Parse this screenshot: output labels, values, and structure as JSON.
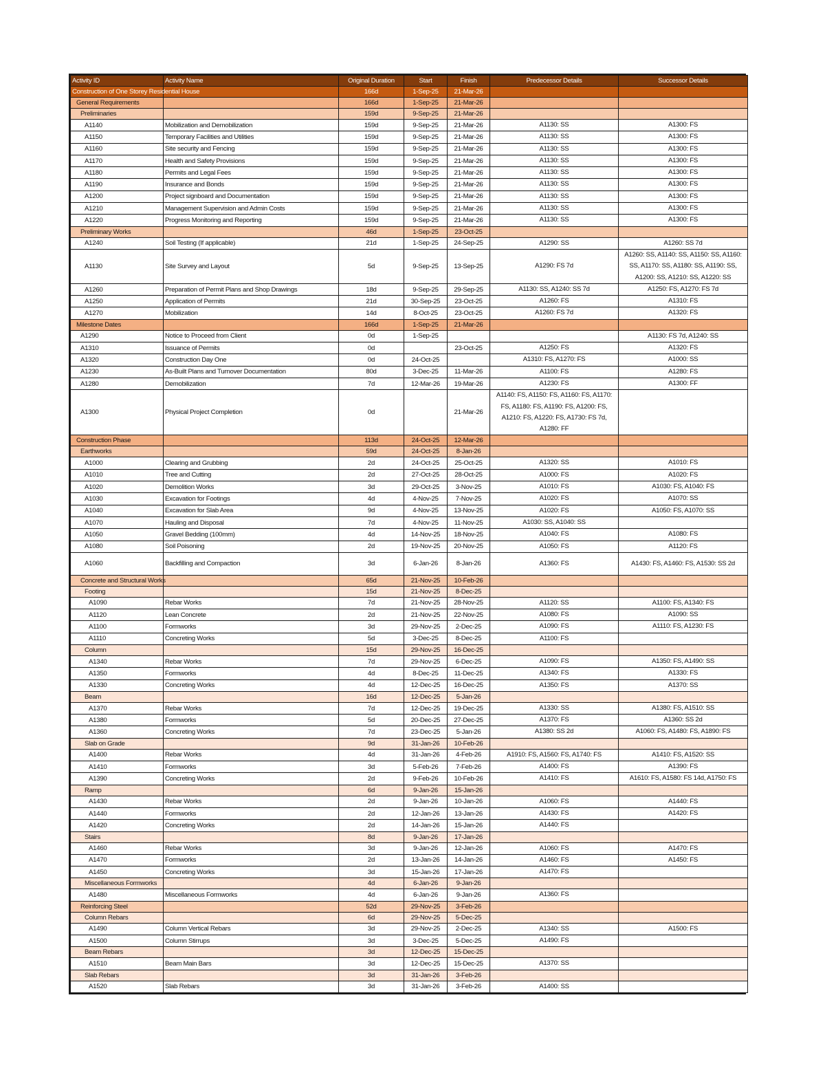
{
  "colors": {
    "header": "#843c0c",
    "level0": "#c55a11",
    "level1": "#f4b084",
    "level2": "#f8cbad",
    "level3": "#fce4d6"
  },
  "columns": [
    "Activity ID",
    "Activity Name",
    "Original Duration",
    "Start",
    "Finish",
    "Predecessor Details",
    "Successor Details"
  ],
  "rows": [
    {
      "type": "wbs",
      "level": 0,
      "label": "Construction of One Storey Residential House",
      "dur": "166d",
      "start": "1-Sep-25",
      "finish": "21-Mar-26"
    },
    {
      "type": "wbs",
      "level": 1,
      "label": "General Requirements",
      "dur": "166d",
      "start": "1-Sep-25",
      "finish": "21-Mar-26"
    },
    {
      "type": "wbs",
      "level": 2,
      "label": "Preliminaries",
      "dur": "159d",
      "start": "9-Sep-25",
      "finish": "21-Mar-26"
    },
    {
      "type": "act",
      "level": 3,
      "id": "A1140",
      "name": "Mobilization and Demobilization",
      "dur": "159d",
      "start": "9-Sep-25",
      "finish": "21-Mar-26",
      "pred": "A1130: SS",
      "succ": "A1300: FS"
    },
    {
      "type": "act",
      "level": 3,
      "id": "A1150",
      "name": "Temporary Facilities and Utilities",
      "dur": "159d",
      "start": "9-Sep-25",
      "finish": "21-Mar-26",
      "pred": "A1130: SS",
      "succ": "A1300: FS"
    },
    {
      "type": "act",
      "level": 3,
      "id": "A1160",
      "name": "Site security and Fencing",
      "dur": "159d",
      "start": "9-Sep-25",
      "finish": "21-Mar-26",
      "pred": "A1130: SS",
      "succ": "A1300: FS"
    },
    {
      "type": "act",
      "level": 3,
      "id": "A1170",
      "name": "Health and Safety Provisions",
      "dur": "159d",
      "start": "9-Sep-25",
      "finish": "21-Mar-26",
      "pred": "A1130: SS",
      "succ": "A1300: FS"
    },
    {
      "type": "act",
      "level": 3,
      "id": "A1180",
      "name": "Permits and Legal Fees",
      "dur": "159d",
      "start": "9-Sep-25",
      "finish": "21-Mar-26",
      "pred": "A1130: SS",
      "succ": "A1300: FS"
    },
    {
      "type": "act",
      "level": 3,
      "id": "A1190",
      "name": "Insurance and Bonds",
      "dur": "159d",
      "start": "9-Sep-25",
      "finish": "21-Mar-26",
      "pred": "A1130: SS",
      "succ": "A1300: FS"
    },
    {
      "type": "act",
      "level": 3,
      "id": "A1200",
      "name": "Project signboard and Documentation",
      "dur": "159d",
      "start": "9-Sep-25",
      "finish": "21-Mar-26",
      "pred": "A1130: SS",
      "succ": "A1300: FS"
    },
    {
      "type": "act",
      "level": 3,
      "id": "A1210",
      "name": "Management Supervision and Admin Costs",
      "dur": "159d",
      "start": "9-Sep-25",
      "finish": "21-Mar-26",
      "pred": "A1130: SS",
      "succ": "A1300: FS"
    },
    {
      "type": "act",
      "level": 3,
      "id": "A1220",
      "name": "Progress Monitoring and Reporting",
      "dur": "159d",
      "start": "9-Sep-25",
      "finish": "21-Mar-26",
      "pred": "A1130: SS",
      "succ": "A1300: FS"
    },
    {
      "type": "wbs",
      "level": 2,
      "label": "Preliminary Works",
      "dur": "46d",
      "start": "1-Sep-25",
      "finish": "23-Oct-25"
    },
    {
      "type": "act",
      "level": 3,
      "id": "A1240",
      "name": "Soil Testing (If applicable)",
      "dur": "21d",
      "start": "1-Sep-25",
      "finish": "24-Sep-25",
      "pred": "A1290: SS",
      "succ": "A1260: SS 7d"
    },
    {
      "type": "act",
      "level": 3,
      "id": "A1130",
      "name": "Site Survey and Layout",
      "dur": "5d",
      "start": "9-Sep-25",
      "finish": "13-Sep-25",
      "pred": "A1290: FS 7d",
      "succ": "A1260: SS, A1140: SS, A1150: SS, A1160: SS, A1170: SS, A1180: SS, A1190: SS, A1200: SS, A1210: SS, A1220: SS"
    },
    {
      "type": "act",
      "level": 3,
      "id": "A1260",
      "name": "Preparation of Permit Plans and Shop Drawings",
      "dur": "18d",
      "start": "9-Sep-25",
      "finish": "29-Sep-25",
      "pred": "A1130: SS, A1240: SS 7d",
      "succ": "A1250: FS, A1270: FS 7d"
    },
    {
      "type": "act",
      "level": 3,
      "id": "A1250",
      "name": "Application of Permits",
      "dur": "21d",
      "start": "30-Sep-25",
      "finish": "23-Oct-25",
      "pred": "A1260: FS",
      "succ": "A1310: FS"
    },
    {
      "type": "act",
      "level": 3,
      "id": "A1270",
      "name": "Mobilization",
      "dur": "14d",
      "start": "8-Oct-25",
      "finish": "23-Oct-25",
      "pred": "A1260: FS 7d",
      "succ": "A1320: FS"
    },
    {
      "type": "wbs",
      "level": 1,
      "label": "Milestone Dates",
      "dur": "166d",
      "start": "1-Sep-25",
      "finish": "21-Mar-26"
    },
    {
      "type": "act",
      "level": 2,
      "id": "A1290",
      "name": "Notice to Proceed from Client",
      "dur": "0d",
      "start": "1-Sep-25",
      "finish": "",
      "pred": "",
      "succ": "A1130: FS 7d, A1240: SS"
    },
    {
      "type": "act",
      "level": 2,
      "id": "A1310",
      "name": "Issuance of Permits",
      "dur": "0d",
      "start": "",
      "finish": "23-Oct-25",
      "pred": "A1250: FS",
      "succ": "A1320: FS"
    },
    {
      "type": "act",
      "level": 2,
      "id": "A1320",
      "name": "Construction Day One",
      "dur": "0d",
      "start": "24-Oct-25",
      "finish": "",
      "pred": "A1310: FS, A1270: FS",
      "succ": "A1000: SS"
    },
    {
      "type": "act",
      "level": 2,
      "id": "A1230",
      "name": "As-Built Plans and Turnover Documentation",
      "dur": "80d",
      "start": "3-Dec-25",
      "finish": "11-Mar-26",
      "pred": "A1100: FS",
      "succ": "A1280: FS"
    },
    {
      "type": "act",
      "level": 2,
      "id": "A1280",
      "name": "Demobilization",
      "dur": "7d",
      "start": "12-Mar-26",
      "finish": "19-Mar-26",
      "pred": "A1230: FS",
      "succ": "A1300: FF"
    },
    {
      "type": "act",
      "level": 2,
      "id": "A1300",
      "name": "Physical Project Completion",
      "dur": "0d",
      "start": "",
      "finish": "21-Mar-26",
      "pred": "A1140: FS, A1150: FS, A1160: FS, A1170: FS, A1180: FS, A1190: FS, A1200: FS, A1210: FS, A1220: FS, A1730: FS 7d, A1280: FF",
      "succ": ""
    },
    {
      "type": "wbs",
      "level": 1,
      "label": "Construction Phase",
      "dur": "113d",
      "start": "24-Oct-25",
      "finish": "12-Mar-26"
    },
    {
      "type": "wbs",
      "level": 2,
      "label": "Earthworks",
      "dur": "59d",
      "start": "24-Oct-25",
      "finish": "8-Jan-26"
    },
    {
      "type": "act",
      "level": 3,
      "id": "A1000",
      "name": "Clearing and Grubbing",
      "dur": "2d",
      "start": "24-Oct-25",
      "finish": "25-Oct-25",
      "pred": "A1320: SS",
      "succ": "A1010: FS"
    },
    {
      "type": "act",
      "level": 3,
      "id": "A1010",
      "name": "Tree and Cutting",
      "dur": "2d",
      "start": "27-Oct-25",
      "finish": "28-Oct-25",
      "pred": "A1000: FS",
      "succ": "A1020: FS"
    },
    {
      "type": "act",
      "level": 3,
      "id": "A1020",
      "name": "Demolition Works",
      "dur": "3d",
      "start": "29-Oct-25",
      "finish": "3-Nov-25",
      "pred": "A1010: FS",
      "succ": "A1030: FS, A1040: FS"
    },
    {
      "type": "act",
      "level": 3,
      "id": "A1030",
      "name": "Excavation for Footings",
      "dur": "4d",
      "start": "4-Nov-25",
      "finish": "7-Nov-25",
      "pred": "A1020: FS",
      "succ": "A1070: SS"
    },
    {
      "type": "act",
      "level": 3,
      "id": "A1040",
      "name": "Excavation for Slab Area",
      "dur": "9d",
      "start": "4-Nov-25",
      "finish": "13-Nov-25",
      "pred": "A1020: FS",
      "succ": "A1050: FS, A1070: SS"
    },
    {
      "type": "act",
      "level": 3,
      "id": "A1070",
      "name": "Hauling and Disposal",
      "dur": "7d",
      "start": "4-Nov-25",
      "finish": "11-Nov-25",
      "pred": "A1030: SS, A1040: SS",
      "succ": ""
    },
    {
      "type": "act",
      "level": 3,
      "id": "A1050",
      "name": "Gravel Bedding (100mm)",
      "dur": "4d",
      "start": "14-Nov-25",
      "finish": "18-Nov-25",
      "pred": "A1040: FS",
      "succ": "A1080: FS"
    },
    {
      "type": "act",
      "level": 3,
      "id": "A1080",
      "name": "Soil Poisoning",
      "dur": "2d",
      "start": "19-Nov-25",
      "finish": "20-Nov-25",
      "pred": "A1050: FS",
      "succ": "A1120: FS"
    },
    {
      "type": "act",
      "level": 3,
      "id": "A1060",
      "name": "Backfilling and Compaction",
      "dur": "3d",
      "start": "6-Jan-26",
      "finish": "8-Jan-26",
      "pred": "A1360: FS",
      "succ": "A1430: FS, A1460: FS, A1530: SS 2d",
      "tall": true
    },
    {
      "type": "wbs",
      "level": 2,
      "label": "Concrete and Structural Works",
      "dur": "65d",
      "start": "21-Nov-25",
      "finish": "10-Feb-26"
    },
    {
      "type": "wbs",
      "level": 3,
      "label": "Footing",
      "dur": "15d",
      "start": "21-Nov-25",
      "finish": "8-Dec-25"
    },
    {
      "type": "act",
      "level": 4,
      "id": "A1090",
      "name": "Rebar Works",
      "dur": "7d",
      "start": "21-Nov-25",
      "finish": "28-Nov-25",
      "pred": "A1120: SS",
      "succ": "A1100: FS, A1340: FS"
    },
    {
      "type": "act",
      "level": 4,
      "id": "A1120",
      "name": "Lean Concrete",
      "dur": "2d",
      "start": "21-Nov-25",
      "finish": "22-Nov-25",
      "pred": "A1080: FS",
      "succ": "A1090: SS"
    },
    {
      "type": "act",
      "level": 4,
      "id": "A1100",
      "name": "Formworks",
      "dur": "3d",
      "start": "29-Nov-25",
      "finish": "2-Dec-25",
      "pred": "A1090: FS",
      "succ": "A1110: FS, A1230: FS"
    },
    {
      "type": "act",
      "level": 4,
      "id": "A1110",
      "name": "Concreting Works",
      "dur": "5d",
      "start": "3-Dec-25",
      "finish": "8-Dec-25",
      "pred": "A1100: FS",
      "succ": ""
    },
    {
      "type": "wbs",
      "level": 3,
      "label": "Column",
      "dur": "15d",
      "start": "29-Nov-25",
      "finish": "16-Dec-25"
    },
    {
      "type": "act",
      "level": 4,
      "id": "A1340",
      "name": "Rebar Works",
      "dur": "7d",
      "start": "29-Nov-25",
      "finish": "6-Dec-25",
      "pred": "A1090: FS",
      "succ": "A1350: FS, A1490: SS"
    },
    {
      "type": "act",
      "level": 4,
      "id": "A1350",
      "name": "Formworks",
      "dur": "4d",
      "start": "8-Dec-25",
      "finish": "11-Dec-25",
      "pred": "A1340: FS",
      "succ": "A1330: FS"
    },
    {
      "type": "act",
      "level": 4,
      "id": "A1330",
      "name": "Concreting Works",
      "dur": "4d",
      "start": "12-Dec-25",
      "finish": "16-Dec-25",
      "pred": "A1350: FS",
      "succ": "A1370: SS"
    },
    {
      "type": "wbs",
      "level": 3,
      "label": "Beam",
      "dur": "16d",
      "start": "12-Dec-25",
      "finish": "5-Jan-26"
    },
    {
      "type": "act",
      "level": 4,
      "id": "A1370",
      "name": "Rebar Works",
      "dur": "7d",
      "start": "12-Dec-25",
      "finish": "19-Dec-25",
      "pred": "A1330: SS",
      "succ": "A1380: FS, A1510: SS"
    },
    {
      "type": "act",
      "level": 4,
      "id": "A1380",
      "name": "Formworks",
      "dur": "5d",
      "start": "20-Dec-25",
      "finish": "27-Dec-25",
      "pred": "A1370: FS",
      "succ": "A1360: SS 2d"
    },
    {
      "type": "act",
      "level": 4,
      "id": "A1360",
      "name": "Concreting Works",
      "dur": "7d",
      "start": "23-Dec-25",
      "finish": "5-Jan-26",
      "pred": "A1380: SS 2d",
      "succ": "A1060: FS, A1480: FS, A1890: FS"
    },
    {
      "type": "wbs",
      "level": 3,
      "label": "Slab on Grade",
      "dur": "9d",
      "start": "31-Jan-26",
      "finish": "10-Feb-26"
    },
    {
      "type": "act",
      "level": 4,
      "id": "A1400",
      "name": "Rebar Works",
      "dur": "4d",
      "start": "31-Jan-26",
      "finish": "4-Feb-26",
      "pred": "A1910: FS, A1560: FS, A1740: FS",
      "succ": "A1410: FS, A1520: SS"
    },
    {
      "type": "act",
      "level": 4,
      "id": "A1410",
      "name": "Formworks",
      "dur": "3d",
      "start": "5-Feb-26",
      "finish": "7-Feb-26",
      "pred": "A1400: FS",
      "succ": "A1390: FS"
    },
    {
      "type": "act",
      "level": 4,
      "id": "A1390",
      "name": "Concreting Works",
      "dur": "2d",
      "start": "9-Feb-26",
      "finish": "10-Feb-26",
      "pred": "A1410: FS",
      "succ": "A1610: FS, A1580: FS 14d, A1750: FS"
    },
    {
      "type": "wbs",
      "level": 3,
      "label": "Ramp",
      "dur": "6d",
      "start": "9-Jan-26",
      "finish": "15-Jan-26"
    },
    {
      "type": "act",
      "level": 4,
      "id": "A1430",
      "name": "Rebar Works",
      "dur": "2d",
      "start": "9-Jan-26",
      "finish": "10-Jan-26",
      "pred": "A1060: FS",
      "succ": "A1440: FS"
    },
    {
      "type": "act",
      "level": 4,
      "id": "A1440",
      "name": "Formworks",
      "dur": "2d",
      "start": "12-Jan-26",
      "finish": "13-Jan-26",
      "pred": "A1430: FS",
      "succ": "A1420: FS"
    },
    {
      "type": "act",
      "level": 4,
      "id": "A1420",
      "name": "Concreting Works",
      "dur": "2d",
      "start": "14-Jan-26",
      "finish": "15-Jan-26",
      "pred": "A1440: FS",
      "succ": ""
    },
    {
      "type": "wbs",
      "level": 3,
      "label": "Stairs",
      "dur": "8d",
      "start": "9-Jan-26",
      "finish": "17-Jan-26"
    },
    {
      "type": "act",
      "level": 4,
      "id": "A1460",
      "name": "Rebar Works",
      "dur": "3d",
      "start": "9-Jan-26",
      "finish": "12-Jan-26",
      "pred": "A1060: FS",
      "succ": "A1470: FS"
    },
    {
      "type": "act",
      "level": 4,
      "id": "A1470",
      "name": "Formworks",
      "dur": "2d",
      "start": "13-Jan-26",
      "finish": "14-Jan-26",
      "pred": "A1460: FS",
      "succ": "A1450: FS"
    },
    {
      "type": "act",
      "level": 4,
      "id": "A1450",
      "name": "Concreting Works",
      "dur": "3d",
      "start": "15-Jan-26",
      "finish": "17-Jan-26",
      "pred": "A1470: FS",
      "succ": ""
    },
    {
      "type": "wbs",
      "level": 3,
      "label": "Miscellaneous Formworks",
      "dur": "4d",
      "start": "6-Jan-26",
      "finish": "9-Jan-26"
    },
    {
      "type": "act",
      "level": 4,
      "id": "A1480",
      "name": "Miscellaneous Formworks",
      "dur": "4d",
      "start": "6-Jan-26",
      "finish": "9-Jan-26",
      "pred": "A1360: FS",
      "succ": ""
    },
    {
      "type": "wbs",
      "level": 2,
      "label": "Reinforcing Steel",
      "dur": "52d",
      "start": "29-Nov-25",
      "finish": "3-Feb-26"
    },
    {
      "type": "wbs",
      "level": 3,
      "label": "Column Rebars",
      "dur": "6d",
      "start": "29-Nov-25",
      "finish": "5-Dec-25"
    },
    {
      "type": "act",
      "level": 4,
      "id": "A1490",
      "name": "Column Vertical Rebars",
      "dur": "3d",
      "start": "29-Nov-25",
      "finish": "2-Dec-25",
      "pred": "A1340: SS",
      "succ": "A1500: FS"
    },
    {
      "type": "act",
      "level": 4,
      "id": "A1500",
      "name": "Column Stirrups",
      "dur": "3d",
      "start": "3-Dec-25",
      "finish": "5-Dec-25",
      "pred": "A1490: FS",
      "succ": ""
    },
    {
      "type": "wbs",
      "level": 3,
      "label": "Beam Rebars",
      "dur": "3d",
      "start": "12-Dec-25",
      "finish": "15-Dec-25"
    },
    {
      "type": "act",
      "level": 4,
      "id": "A1510",
      "name": "Beam Main Bars",
      "dur": "3d",
      "start": "12-Dec-25",
      "finish": "15-Dec-25",
      "pred": "A1370: SS",
      "succ": ""
    },
    {
      "type": "wbs",
      "level": 3,
      "label": "Slab Rebars",
      "dur": "3d",
      "start": "31-Jan-26",
      "finish": "3-Feb-26"
    },
    {
      "type": "act",
      "level": 4,
      "id": "A1520",
      "name": "Slab Rebars",
      "dur": "3d",
      "start": "31-Jan-26",
      "finish": "3-Feb-26",
      "pred": "A1400: SS",
      "succ": ""
    }
  ]
}
